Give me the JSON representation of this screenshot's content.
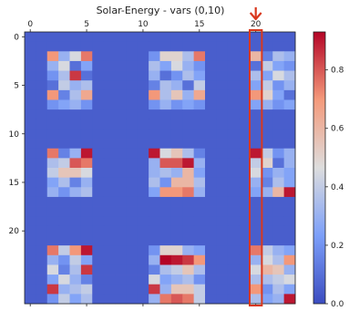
{
  "chart_data": {
    "type": "heatmap",
    "title": "Solar-Energy - vars (0,10)",
    "xlabel": "",
    "ylabel": "",
    "x_ticks": [
      "0",
      "5",
      "10",
      "15",
      "20"
    ],
    "y_ticks": [
      "0",
      "5",
      "10",
      "15",
      "20"
    ],
    "colorbar_ticks": [
      "0.0",
      "0.2",
      "0.4",
      "0.6",
      "0.8"
    ],
    "colormap": "coolwarm",
    "value_range": [
      0,
      0.93
    ],
    "highlight_column": 20,
    "highlight_color": "#d9381e",
    "grid": false,
    "matrix": [
      [
        0.05,
        0.05,
        0.05,
        0.05,
        0.05,
        0.05,
        0.05,
        0.05,
        0.05,
        0.05,
        0.05,
        0.05,
        0.05,
        0.05,
        0.05,
        0.05,
        0.05,
        0.05,
        0.05,
        0.05,
        0.05,
        0.05,
        0.05,
        0.05
      ],
      [
        0.05,
        0.05,
        0.05,
        0.05,
        0.05,
        0.05,
        0.05,
        0.05,
        0.05,
        0.05,
        0.05,
        0.05,
        0.05,
        0.05,
        0.05,
        0.05,
        0.05,
        0.05,
        0.05,
        0.05,
        0.05,
        0.05,
        0.05,
        0.05
      ],
      [
        0.05,
        0.05,
        0.7,
        0.3,
        0.45,
        0.75,
        0.05,
        0.05,
        0.05,
        0.05,
        0.05,
        0.2,
        0.5,
        0.5,
        0.35,
        0.75,
        0.05,
        0.05,
        0.05,
        0.05,
        0.6,
        0.15,
        0.35,
        0.3
      ],
      [
        0.05,
        0.05,
        0.3,
        0.45,
        0.1,
        0.25,
        0.05,
        0.05,
        0.05,
        0.05,
        0.05,
        0.35,
        0.25,
        0.45,
        0.3,
        0.2,
        0.05,
        0.05,
        0.05,
        0.05,
        0.1,
        0.4,
        0.25,
        0.2
      ],
      [
        0.05,
        0.05,
        0.2,
        0.35,
        0.85,
        0.1,
        0.05,
        0.05,
        0.05,
        0.05,
        0.05,
        0.3,
        0.1,
        0.2,
        0.35,
        0.25,
        0.05,
        0.05,
        0.05,
        0.05,
        0.35,
        0.25,
        0.45,
        0.35
      ],
      [
        0.05,
        0.05,
        0.1,
        0.4,
        0.3,
        0.35,
        0.05,
        0.05,
        0.05,
        0.05,
        0.05,
        0.15,
        0.35,
        0.3,
        0.1,
        0.4,
        0.05,
        0.05,
        0.05,
        0.05,
        0.25,
        0.4,
        0.2,
        0.3
      ],
      [
        0.05,
        0.05,
        0.7,
        0.15,
        0.35,
        0.65,
        0.05,
        0.05,
        0.05,
        0.05,
        0.05,
        0.7,
        0.35,
        0.55,
        0.3,
        0.65,
        0.05,
        0.05,
        0.05,
        0.05,
        0.7,
        0.5,
        0.25,
        0.1
      ],
      [
        0.05,
        0.05,
        0.2,
        0.25,
        0.3,
        0.2,
        0.05,
        0.05,
        0.05,
        0.05,
        0.05,
        0.2,
        0.3,
        0.2,
        0.25,
        0.2,
        0.05,
        0.05,
        0.05,
        0.05,
        0.25,
        0.3,
        0.2,
        0.25
      ],
      [
        0.05,
        0.05,
        0.05,
        0.05,
        0.05,
        0.05,
        0.05,
        0.05,
        0.05,
        0.05,
        0.05,
        0.05,
        0.05,
        0.05,
        0.05,
        0.05,
        0.05,
        0.05,
        0.05,
        0.05,
        0.05,
        0.05,
        0.05,
        0.05
      ],
      [
        0.05,
        0.05,
        0.05,
        0.05,
        0.05,
        0.05,
        0.05,
        0.05,
        0.05,
        0.05,
        0.05,
        0.05,
        0.05,
        0.05,
        0.05,
        0.05,
        0.05,
        0.05,
        0.05,
        0.05,
        0.05,
        0.05,
        0.05,
        0.05
      ],
      [
        0.05,
        0.05,
        0.05,
        0.05,
        0.05,
        0.05,
        0.05,
        0.05,
        0.05,
        0.05,
        0.05,
        0.05,
        0.05,
        0.05,
        0.05,
        0.05,
        0.05,
        0.05,
        0.05,
        0.05,
        0.05,
        0.05,
        0.05,
        0.05
      ],
      [
        0.05,
        0.05,
        0.05,
        0.05,
        0.05,
        0.05,
        0.05,
        0.05,
        0.05,
        0.05,
        0.05,
        0.05,
        0.05,
        0.05,
        0.05,
        0.05,
        0.05,
        0.05,
        0.05,
        0.05,
        0.05,
        0.05,
        0.05,
        0.05
      ],
      [
        0.05,
        0.05,
        0.75,
        0.15,
        0.3,
        0.9,
        0.05,
        0.05,
        0.05,
        0.05,
        0.05,
        0.9,
        0.45,
        0.55,
        0.35,
        0.15,
        0.05,
        0.05,
        0.05,
        0.05,
        0.9,
        0.4,
        0.2,
        0.3
      ],
      [
        0.05,
        0.05,
        0.35,
        0.4,
        0.8,
        0.75,
        0.05,
        0.05,
        0.05,
        0.05,
        0.05,
        0.3,
        0.8,
        0.8,
        0.9,
        0.3,
        0.05,
        0.05,
        0.05,
        0.05,
        0.4,
        0.5,
        0.1,
        0.3
      ],
      [
        0.05,
        0.05,
        0.4,
        0.55,
        0.55,
        0.45,
        0.05,
        0.05,
        0.05,
        0.05,
        0.05,
        0.3,
        0.35,
        0.3,
        0.6,
        0.25,
        0.05,
        0.05,
        0.05,
        0.05,
        0.45,
        0.2,
        0.3,
        0.25
      ],
      [
        0.05,
        0.05,
        0.25,
        0.35,
        0.15,
        0.3,
        0.05,
        0.05,
        0.05,
        0.05,
        0.05,
        0.35,
        0.2,
        0.6,
        0.6,
        0.35,
        0.05,
        0.05,
        0.05,
        0.05,
        0.3,
        0.15,
        0.35,
        0.25
      ],
      [
        0.05,
        0.05,
        0.3,
        0.2,
        0.3,
        0.35,
        0.05,
        0.05,
        0.05,
        0.05,
        0.05,
        0.25,
        0.7,
        0.7,
        0.75,
        0.3,
        0.05,
        0.05,
        0.05,
        0.05,
        0.25,
        0.3,
        0.6,
        0.9
      ],
      [
        0.05,
        0.05,
        0.05,
        0.05,
        0.05,
        0.05,
        0.05,
        0.05,
        0.05,
        0.05,
        0.05,
        0.05,
        0.05,
        0.05,
        0.05,
        0.05,
        0.05,
        0.05,
        0.05,
        0.05,
        0.05,
        0.05,
        0.05,
        0.05
      ],
      [
        0.05,
        0.05,
        0.05,
        0.05,
        0.05,
        0.05,
        0.05,
        0.05,
        0.05,
        0.05,
        0.05,
        0.05,
        0.05,
        0.05,
        0.05,
        0.05,
        0.05,
        0.05,
        0.05,
        0.05,
        0.05,
        0.05,
        0.05,
        0.05
      ],
      [
        0.05,
        0.05,
        0.05,
        0.05,
        0.05,
        0.05,
        0.05,
        0.05,
        0.05,
        0.05,
        0.05,
        0.05,
        0.05,
        0.05,
        0.05,
        0.05,
        0.05,
        0.05,
        0.05,
        0.05,
        0.05,
        0.05,
        0.05,
        0.05
      ],
      [
        0.05,
        0.05,
        0.05,
        0.05,
        0.05,
        0.05,
        0.05,
        0.05,
        0.05,
        0.05,
        0.05,
        0.05,
        0.05,
        0.05,
        0.05,
        0.05,
        0.05,
        0.05,
        0.05,
        0.05,
        0.05,
        0.05,
        0.05,
        0.05
      ],
      [
        0.05,
        0.05,
        0.05,
        0.05,
        0.05,
        0.05,
        0.05,
        0.05,
        0.05,
        0.05,
        0.05,
        0.05,
        0.05,
        0.05,
        0.05,
        0.05,
        0.05,
        0.05,
        0.05,
        0.05,
        0.05,
        0.05,
        0.05,
        0.05
      ],
      [
        0.05,
        0.05,
        0.75,
        0.4,
        0.7,
        0.9,
        0.05,
        0.05,
        0.05,
        0.05,
        0.05,
        0.2,
        0.5,
        0.5,
        0.3,
        0.25,
        0.05,
        0.05,
        0.05,
        0.05,
        0.75,
        0.4,
        0.3,
        0.25
      ],
      [
        0.05,
        0.05,
        0.3,
        0.2,
        0.4,
        0.25,
        0.05,
        0.05,
        0.05,
        0.05,
        0.05,
        0.3,
        0.93,
        0.9,
        0.85,
        0.7,
        0.05,
        0.05,
        0.05,
        0.05,
        0.3,
        0.45,
        0.35,
        0.7
      ],
      [
        0.05,
        0.05,
        0.45,
        0.15,
        0.35,
        0.85,
        0.05,
        0.05,
        0.05,
        0.05,
        0.05,
        0.15,
        0.35,
        0.4,
        0.55,
        0.35,
        0.05,
        0.05,
        0.05,
        0.05,
        0.45,
        0.6,
        0.55,
        0.3
      ],
      [
        0.05,
        0.05,
        0.25,
        0.45,
        0.3,
        0.15,
        0.05,
        0.05,
        0.05,
        0.05,
        0.05,
        0.45,
        0.25,
        0.3,
        0.35,
        0.2,
        0.05,
        0.05,
        0.05,
        0.05,
        0.35,
        0.35,
        0.4,
        0.45
      ],
      [
        0.05,
        0.05,
        0.85,
        0.3,
        0.35,
        0.4,
        0.05,
        0.05,
        0.05,
        0.05,
        0.05,
        0.85,
        0.3,
        0.55,
        0.55,
        0.4,
        0.05,
        0.05,
        0.05,
        0.05,
        0.7,
        0.2,
        0.35,
        0.25
      ],
      [
        0.05,
        0.05,
        0.2,
        0.4,
        0.25,
        0.35,
        0.05,
        0.05,
        0.05,
        0.05,
        0.05,
        0.3,
        0.75,
        0.8,
        0.75,
        0.4,
        0.05,
        0.05,
        0.05,
        0.05,
        0.35,
        0.25,
        0.3,
        0.9
      ]
    ]
  }
}
